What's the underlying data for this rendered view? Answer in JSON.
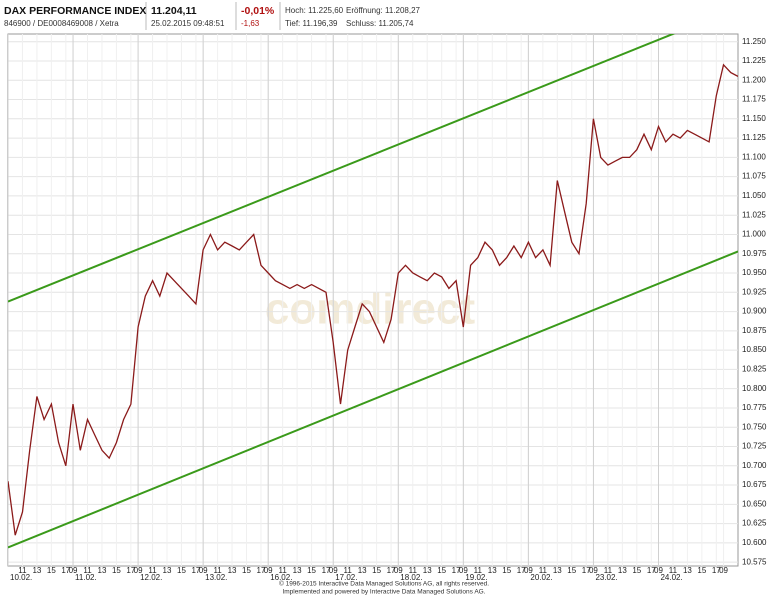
{
  "header": {
    "name": "DAX PERFORMANCE INDEX",
    "ids": "846900 / DE0008469008 / Xetra",
    "price": "11.204,11",
    "timestamp": "25.02.2015 09:48:51",
    "change_pct": "-0,01%",
    "change_abs": "-1,63",
    "high": "Hoch: 11.225,60",
    "low": "Tief: 11.196,39",
    "open": "Eröffnung: 11.208,27",
    "close": "Schluss: 11.205,74"
  },
  "chart_data": {
    "type": "line",
    "watermark": "comdirect",
    "series": [
      {
        "name": "DAX",
        "color": "#8b1a1a",
        "values": [
          10680,
          10610,
          10640,
          10720,
          10790,
          10760,
          10780,
          10730,
          10700,
          10780,
          10720,
          10760,
          10740,
          10720,
          10710,
          10730,
          10760,
          10780,
          10880,
          10920,
          10940,
          10920,
          10950,
          10940,
          10930,
          10920,
          10910,
          10980,
          11000,
          10980,
          10990,
          10985,
          10980,
          10990,
          11000,
          10960,
          10950,
          10940,
          10935,
          10930,
          10935,
          10930,
          10935,
          10930,
          10925,
          10860,
          10780,
          10850,
          10880,
          10910,
          10900,
          10880,
          10860,
          10890,
          10950,
          10960,
          10950,
          10945,
          10940,
          10950,
          10945,
          10930,
          10940,
          10880,
          10960,
          10970,
          10990,
          10980,
          10960,
          10970,
          10985,
          10970,
          10990,
          10970,
          10980,
          10960,
          11070,
          11030,
          10990,
          10975,
          11040,
          11150,
          11100,
          11090,
          11095,
          11100,
          11100,
          11110,
          11130,
          11110,
          11140,
          11120,
          11130,
          11125,
          11135,
          11130,
          11125,
          11120,
          11180,
          11220,
          11210,
          11205
        ]
      }
    ],
    "trend_lines": [
      {
        "color": "#3a9a1a",
        "values": [
          10913,
          11294
        ]
      },
      {
        "color": "#3a9a1a",
        "values": [
          10594,
          10978
        ]
      }
    ],
    "ylim": [
      10570,
      11260
    ],
    "yticks": [
      {
        "value": 11250,
        "label": "11.250"
      },
      {
        "value": 11225,
        "label": "11.225"
      },
      {
        "value": 11200,
        "label": "11.200"
      },
      {
        "value": 11175,
        "label": "11.175"
      },
      {
        "value": 11150,
        "label": "11.150"
      },
      {
        "value": 11125,
        "label": "11.125"
      },
      {
        "value": 11100,
        "label": "11.100"
      },
      {
        "value": 11075,
        "label": "11.075"
      },
      {
        "value": 11050,
        "label": "11.050"
      },
      {
        "value": 11025,
        "label": "11.025"
      },
      {
        "value": 11000,
        "label": "11.000"
      },
      {
        "value": 10975,
        "label": "10.975"
      },
      {
        "value": 10950,
        "label": "10.950"
      },
      {
        "value": 10925,
        "label": "10.925"
      },
      {
        "value": 10900,
        "label": "10.900"
      },
      {
        "value": 10875,
        "label": "10.875"
      },
      {
        "value": 10850,
        "label": "10.850"
      },
      {
        "value": 10825,
        "label": "10.825"
      },
      {
        "value": 10800,
        "label": "10.800"
      },
      {
        "value": 10775,
        "label": "10.775"
      },
      {
        "value": 10750,
        "label": "10.750"
      },
      {
        "value": 10725,
        "label": "10.725"
      },
      {
        "value": 10700,
        "label": "10.700"
      },
      {
        "value": 10675,
        "label": "10.675"
      },
      {
        "value": 10650,
        "label": "10.650"
      },
      {
        "value": 10625,
        "label": "10.625"
      },
      {
        "value": 10600,
        "label": "10.600"
      },
      {
        "value": 10575,
        "label": "10.575"
      }
    ],
    "xticks": [
      {
        "value": 2,
        "label": "11"
      },
      {
        "value": 4,
        "label": "13"
      },
      {
        "value": 6,
        "label": "15"
      },
      {
        "value": 8,
        "label": "17"
      },
      {
        "value": 9,
        "label": "09"
      },
      {
        "value": 11,
        "label": "11"
      },
      {
        "value": 13,
        "label": "13"
      },
      {
        "value": 15,
        "label": "15"
      },
      {
        "value": 17,
        "label": "17"
      },
      {
        "value": 18,
        "label": "09"
      },
      {
        "value": 20,
        "label": "11"
      },
      {
        "value": 22,
        "label": "13"
      },
      {
        "value": 24,
        "label": "15"
      },
      {
        "value": 26,
        "label": "17"
      },
      {
        "value": 27,
        "label": "09"
      },
      {
        "value": 29,
        "label": "11"
      },
      {
        "value": 31,
        "label": "13"
      },
      {
        "value": 33,
        "label": "15"
      },
      {
        "value": 35,
        "label": "17"
      },
      {
        "value": 36,
        "label": "09"
      },
      {
        "value": 38,
        "label": "11"
      },
      {
        "value": 40,
        "label": "13"
      },
      {
        "value": 42,
        "label": "15"
      },
      {
        "value": 44,
        "label": "17"
      },
      {
        "value": 45,
        "label": "09"
      },
      {
        "value": 47,
        "label": "11"
      },
      {
        "value": 49,
        "label": "13"
      },
      {
        "value": 51,
        "label": "15"
      },
      {
        "value": 53,
        "label": "17"
      },
      {
        "value": 54,
        "label": "09"
      },
      {
        "value": 56,
        "label": "11"
      },
      {
        "value": 58,
        "label": "13"
      },
      {
        "value": 60,
        "label": "15"
      },
      {
        "value": 62,
        "label": "17"
      },
      {
        "value": 63,
        "label": "09"
      },
      {
        "value": 65,
        "label": "11"
      },
      {
        "value": 67,
        "label": "13"
      },
      {
        "value": 69,
        "label": "15"
      },
      {
        "value": 71,
        "label": "17"
      },
      {
        "value": 72,
        "label": "09"
      },
      {
        "value": 74,
        "label": "11"
      },
      {
        "value": 76,
        "label": "13"
      },
      {
        "value": 78,
        "label": "15"
      },
      {
        "value": 80,
        "label": "17"
      },
      {
        "value": 81,
        "label": "09"
      },
      {
        "value": 83,
        "label": "11"
      },
      {
        "value": 85,
        "label": "13"
      },
      {
        "value": 87,
        "label": "15"
      },
      {
        "value": 89,
        "label": "17"
      },
      {
        "value": 90,
        "label": "09"
      },
      {
        "value": 92,
        "label": "11"
      },
      {
        "value": 94,
        "label": "13"
      },
      {
        "value": 96,
        "label": "15"
      },
      {
        "value": 98,
        "label": "17"
      },
      {
        "value": 99,
        "label": "09"
      }
    ],
    "date_ticks": [
      {
        "value": 0,
        "label": "10.02."
      },
      {
        "value": 9,
        "label": "11.02."
      },
      {
        "value": 18,
        "label": "12.02."
      },
      {
        "value": 27,
        "label": "13.02."
      },
      {
        "value": 36,
        "label": "16.02."
      },
      {
        "value": 45,
        "label": "17.02."
      },
      {
        "value": 54,
        "label": "18.02."
      },
      {
        "value": 63,
        "label": "19.02."
      },
      {
        "value": 72,
        "label": "20.02."
      },
      {
        "value": 81,
        "label": "23.02."
      },
      {
        "value": 90,
        "label": "24.02."
      }
    ],
    "grid": true
  },
  "footer": [
    "© 1996-2015 Interactive Data Managed Solutions AG, all rights reserved.",
    "Implemented and powered by Interactive Data Managed Solutions AG."
  ]
}
